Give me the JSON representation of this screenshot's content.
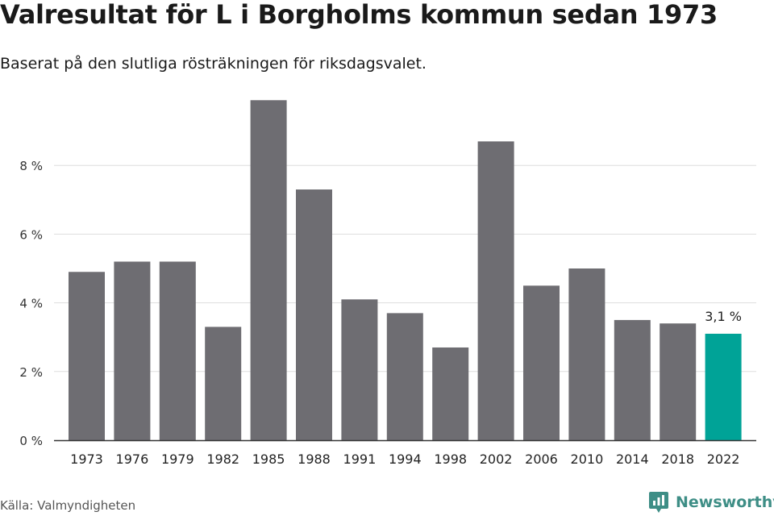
{
  "title": "Valresultat för L i Borgholms kommun sedan 1973",
  "subtitle": "Baserat på den slutliga rösträkningen för riksdagsvalet.",
  "source": "Källa: Valmyndigheten",
  "brand": {
    "name": "Newsworthy",
    "icon": "newsworthy-logo-icon",
    "color": "#3e8e86"
  },
  "colors": {
    "bar": "#6e6d72",
    "highlight": "#00a397",
    "grid": "#dddddd",
    "axis": "#333333"
  },
  "chart_data": {
    "type": "bar",
    "title": "Valresultat för L i Borgholms kommun sedan 1973",
    "subtitle": "Baserat på den slutliga rösträkningen för riksdagsvalet.",
    "categories": [
      "1973",
      "1976",
      "1979",
      "1982",
      "1985",
      "1988",
      "1991",
      "1994",
      "1998",
      "2002",
      "2006",
      "2010",
      "2014",
      "2018",
      "2022"
    ],
    "values": [
      4.9,
      5.2,
      5.2,
      3.3,
      9.9,
      7.3,
      4.1,
      3.7,
      2.7,
      8.7,
      4.5,
      5.0,
      3.5,
      3.4,
      3.1
    ],
    "unit": "%",
    "highlight_index": 14,
    "highlight_label": "3,1 %",
    "ylim": [
      0,
      10
    ],
    "yticks": [
      0,
      2,
      4,
      6,
      8
    ],
    "ytick_labels": [
      "0 %",
      "2 %",
      "4 %",
      "6 %",
      "8 %"
    ],
    "xlabel": "",
    "ylabel": "",
    "grid": true,
    "legend": "none"
  }
}
